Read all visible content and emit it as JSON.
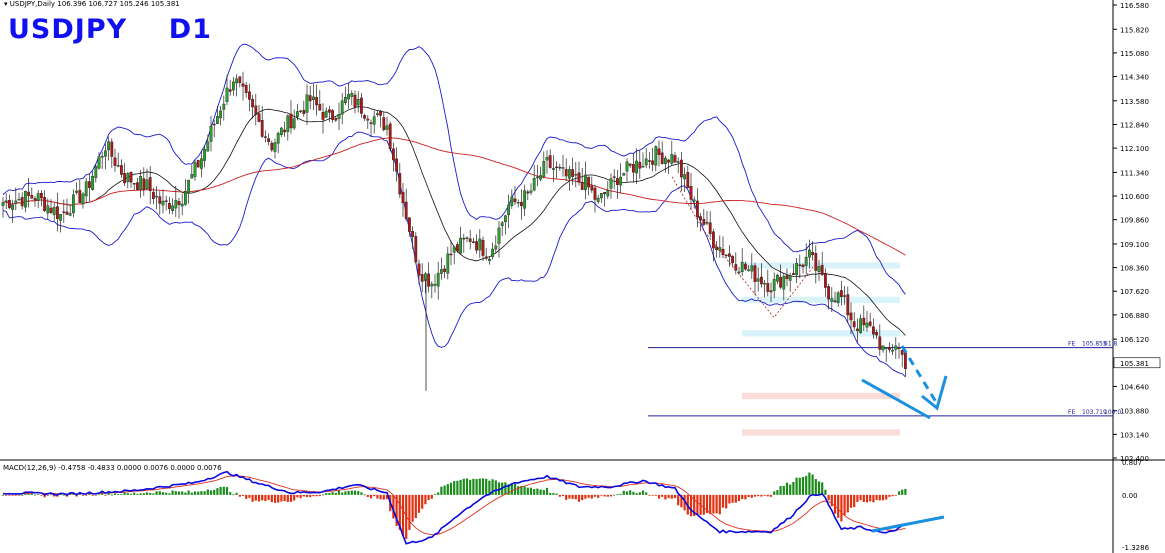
{
  "header": {
    "symbol_info": "USDJPY,Daily",
    "ohlc": "106.396 106.727 105.246 105.381"
  },
  "title": "USDJPY    D1",
  "price_axis": {
    "ticks": [
      "116.580",
      "115.820",
      "115.080",
      "114.340",
      "113.580",
      "112.840",
      "112.100",
      "111.340",
      "110.600",
      "109.860",
      "109.100",
      "108.360",
      "107.620",
      "106.880",
      "106.120",
      "105.381",
      "104.640",
      "103.880",
      "103.140",
      "102.400"
    ],
    "current_price": "105.381"
  },
  "fe_levels": [
    {
      "label": "FE",
      "price": "105.855",
      "pct": "61.8",
      "value": 105.855
    },
    {
      "label": "FE",
      "price": "103.719",
      "pct": "100.0",
      "value": 103.719
    }
  ],
  "macd": {
    "label": "MACD(12,26,9) -0.4758 -0.4833 0.0000 0.0076 0.0000 0.0076",
    "ticks": [
      "0.807",
      "0.00",
      "-1.3286"
    ]
  },
  "colors": {
    "bull": "#2aa12a",
    "bear": "#b01818",
    "bands": "#1a1ad0",
    "mid_ma": "#111111",
    "ma200": "#cc2020",
    "fe_line": "#2020a0",
    "annotation": "#1a90e0",
    "zone_cyan": "#d8f3fa",
    "zone_pink": "#fadcd8",
    "macd_line": "#0a0ae0",
    "signal_line": "#e03020",
    "hist_pos": "#1a8a1a",
    "hist_neg": "#e03010"
  },
  "chart_data": {
    "type": "candlestick",
    "symbol": "USDJPY",
    "timeframe": "D1",
    "ylim": [
      102.4,
      116.58
    ],
    "close_anchors": [
      [
        0,
        110.4
      ],
      [
        10,
        110.6
      ],
      [
        18,
        110.0
      ],
      [
        26,
        110.8
      ],
      [
        32,
        112.2
      ],
      [
        38,
        111.2
      ],
      [
        45,
        110.9
      ],
      [
        50,
        110.3
      ],
      [
        56,
        110.6
      ],
      [
        62,
        111.8
      ],
      [
        68,
        113.4
      ],
      [
        72,
        114.3
      ],
      [
        76,
        113.6
      ],
      [
        80,
        112.9
      ],
      [
        84,
        112.2
      ],
      [
        90,
        113.0
      ],
      [
        96,
        113.6
      ],
      [
        102,
        113.0
      ],
      [
        108,
        113.7
      ],
      [
        114,
        113.2
      ],
      [
        120,
        112.8
      ],
      [
        124,
        110.9
      ],
      [
        130,
        108.3
      ],
      [
        134,
        107.9
      ],
      [
        140,
        108.8
      ],
      [
        146,
        109.3
      ],
      [
        152,
        108.8
      ],
      [
        158,
        110.3
      ],
      [
        164,
        110.6
      ],
      [
        170,
        111.6
      ],
      [
        176,
        111.2
      ],
      [
        182,
        111.0
      ],
      [
        186,
        110.4
      ],
      [
        192,
        111.2
      ],
      [
        198,
        111.6
      ],
      [
        204,
        111.9
      ],
      [
        210,
        111.8
      ],
      [
        216,
        110.3
      ],
      [
        222,
        109.2
      ],
      [
        228,
        108.6
      ],
      [
        234,
        108.2
      ],
      [
        240,
        107.8
      ],
      [
        246,
        108.2
      ],
      [
        252,
        108.7
      ],
      [
        258,
        107.6
      ],
      [
        262,
        107.4
      ],
      [
        266,
        106.6
      ],
      [
        272,
        106.4
      ],
      [
        276,
        105.6
      ],
      [
        279,
        106.0
      ],
      [
        282,
        105.4
      ]
    ],
    "fe_levels": [
      105.855,
      103.719
    ],
    "cyan_zones": [
      [
        108.52,
        108.34
      ],
      [
        107.45,
        107.25
      ],
      [
        106.4,
        106.2
      ]
    ],
    "pink_zones": [
      [
        104.44,
        104.24
      ],
      [
        103.3,
        103.1
      ]
    ],
    "macd_anchors": [
      [
        0,
        0.05
      ],
      [
        20,
        0.02
      ],
      [
        40,
        0.1
      ],
      [
        60,
        0.3
      ],
      [
        70,
        0.55
      ],
      [
        80,
        0.28
      ],
      [
        90,
        0.05
      ],
      [
        100,
        0.08
      ],
      [
        110,
        0.25
      ],
      [
        120,
        0.05
      ],
      [
        126,
        -1.2
      ],
      [
        134,
        -1.05
      ],
      [
        142,
        -0.5
      ],
      [
        150,
        -0.05
      ],
      [
        160,
        0.3
      ],
      [
        170,
        0.45
      ],
      [
        180,
        0.2
      ],
      [
        190,
        0.2
      ],
      [
        200,
        0.35
      ],
      [
        210,
        0.15
      ],
      [
        216,
        -0.45
      ],
      [
        224,
        -0.9
      ],
      [
        232,
        -0.9
      ],
      [
        240,
        -0.9
      ],
      [
        246,
        -0.55
      ],
      [
        252,
        -0.05
      ],
      [
        256,
        0.05
      ],
      [
        262,
        -0.85
      ],
      [
        268,
        -0.8
      ],
      [
        276,
        -0.95
      ],
      [
        282,
        -0.75
      ]
    ]
  }
}
